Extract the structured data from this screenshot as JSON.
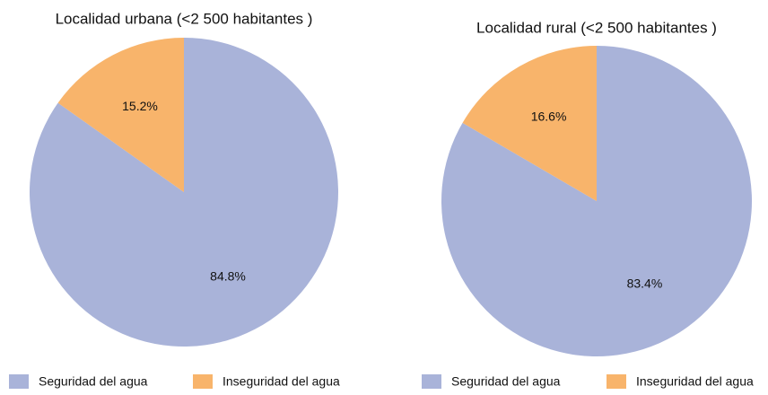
{
  "chart_data": [
    {
      "type": "pie",
      "title": "Localidad urbana (<2 500 habitantes )",
      "categories": [
        "Seguridad del agua",
        "Inseguridad del agua"
      ],
      "values": [
        84.8,
        15.2
      ],
      "value_labels": [
        "84.8%",
        "15.2%"
      ],
      "colors": [
        "#a9b3d9",
        "#f8b46b"
      ]
    },
    {
      "type": "pie",
      "title": "Localidad rural (<2 500 habitantes )",
      "categories": [
        "Seguridad del agua",
        "Inseguridad del agua"
      ],
      "values": [
        83.4,
        16.6
      ],
      "value_labels": [
        "83.4%",
        "16.6%"
      ],
      "colors": [
        "#a9b3d9",
        "#f8b46b"
      ]
    }
  ]
}
